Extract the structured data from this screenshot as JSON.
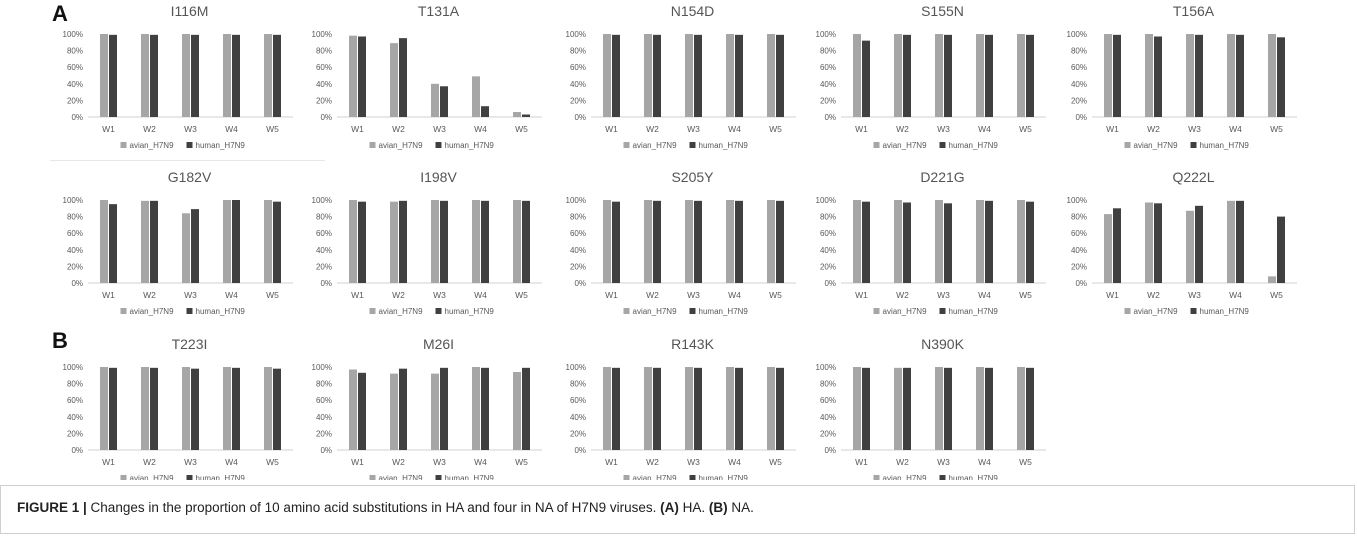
{
  "panel_letters": {
    "a": "A",
    "b": "B"
  },
  "caption": {
    "label": "FIGURE 1 |",
    "text": " Changes in the proportion of 10 amino acid substitutions in HA and four in NA of H7N9 viruses. ",
    "a_label": "(A)",
    "a_text": " HA. ",
    "b_label": "(B)",
    "b_text": " NA."
  },
  "colors": {
    "avian": "#a6a6a6",
    "human": "#404040",
    "axis": "#d0d0d0",
    "text": "#595959"
  },
  "legend": [
    "avian_H7N9",
    "human_H7N9"
  ],
  "chart_data": [
    {
      "type": "bar",
      "group": "A",
      "title": "I116M",
      "categories": [
        "W1",
        "W2",
        "W3",
        "W4",
        "W5"
      ],
      "ylim": [
        0,
        100
      ],
      "yticks": [
        "0%",
        "20%",
        "40%",
        "60%",
        "80%",
        "100%"
      ],
      "series": [
        {
          "name": "avian_H7N9",
          "values": [
            100,
            100,
            100,
            100,
            100
          ]
        },
        {
          "name": "human_H7N9",
          "values": [
            99,
            99,
            99,
            99,
            99
          ]
        }
      ]
    },
    {
      "type": "bar",
      "group": "A",
      "title": "T131A",
      "categories": [
        "W1",
        "W2",
        "W3",
        "W4",
        "W5"
      ],
      "ylim": [
        0,
        100
      ],
      "yticks": [
        "0%",
        "20%",
        "40%",
        "60%",
        "80%",
        "100%"
      ],
      "series": [
        {
          "name": "avian_H7N9",
          "values": [
            98,
            89,
            40,
            49,
            6
          ]
        },
        {
          "name": "human_H7N9",
          "values": [
            97,
            95,
            37,
            13,
            3
          ]
        }
      ]
    },
    {
      "type": "bar",
      "group": "A",
      "title": "N154D",
      "categories": [
        "W1",
        "W2",
        "W3",
        "W4",
        "W5"
      ],
      "ylim": [
        0,
        100
      ],
      "yticks": [
        "0%",
        "20%",
        "40%",
        "60%",
        "80%",
        "100%"
      ],
      "series": [
        {
          "name": "avian_H7N9",
          "values": [
            100,
            100,
            100,
            100,
            100
          ]
        },
        {
          "name": "human_H7N9",
          "values": [
            99,
            99,
            99,
            99,
            99
          ]
        }
      ]
    },
    {
      "type": "bar",
      "group": "A",
      "title": "S155N",
      "categories": [
        "W1",
        "W2",
        "W3",
        "W4",
        "W5"
      ],
      "ylim": [
        0,
        100
      ],
      "yticks": [
        "0%",
        "20%",
        "40%",
        "60%",
        "80%",
        "100%"
      ],
      "series": [
        {
          "name": "avian_H7N9",
          "values": [
            100,
            100,
            100,
            100,
            100
          ]
        },
        {
          "name": "human_H7N9",
          "values": [
            92,
            99,
            99,
            99,
            99
          ]
        }
      ]
    },
    {
      "type": "bar",
      "group": "A",
      "title": "T156A",
      "categories": [
        "W1",
        "W2",
        "W3",
        "W4",
        "W5"
      ],
      "ylim": [
        0,
        100
      ],
      "yticks": [
        "0%",
        "20%",
        "40%",
        "60%",
        "80%",
        "100%"
      ],
      "series": [
        {
          "name": "avian_H7N9",
          "values": [
            100,
            100,
            100,
            100,
            100
          ]
        },
        {
          "name": "human_H7N9",
          "values": [
            99,
            97,
            99,
            99,
            96
          ]
        }
      ]
    },
    {
      "type": "bar",
      "group": "A",
      "title": "G182V",
      "categories": [
        "W1",
        "W2",
        "W3",
        "W4",
        "W5"
      ],
      "ylim": [
        0,
        100
      ],
      "yticks": [
        "0%",
        "20%",
        "40%",
        "60%",
        "80%",
        "100%"
      ],
      "series": [
        {
          "name": "avian_H7N9",
          "values": [
            100,
            99,
            84,
            100,
            100
          ]
        },
        {
          "name": "human_H7N9",
          "values": [
            95,
            99,
            89,
            100,
            98
          ]
        }
      ]
    },
    {
      "type": "bar",
      "group": "A",
      "title": "I198V",
      "categories": [
        "W1",
        "W2",
        "W3",
        "W4",
        "W5"
      ],
      "ylim": [
        0,
        100
      ],
      "yticks": [
        "0%",
        "20%",
        "40%",
        "60%",
        "80%",
        "100%"
      ],
      "series": [
        {
          "name": "avian_H7N9",
          "values": [
            100,
            98,
            100,
            100,
            100
          ]
        },
        {
          "name": "human_H7N9",
          "values": [
            98,
            99,
            99,
            99,
            99
          ]
        }
      ]
    },
    {
      "type": "bar",
      "group": "A",
      "title": "S205Y",
      "categories": [
        "W1",
        "W2",
        "W3",
        "W4",
        "W5"
      ],
      "ylim": [
        0,
        100
      ],
      "yticks": [
        "0%",
        "20%",
        "40%",
        "60%",
        "80%",
        "100%"
      ],
      "series": [
        {
          "name": "avian_H7N9",
          "values": [
            100,
            100,
            100,
            100,
            100
          ]
        },
        {
          "name": "human_H7N9",
          "values": [
            98,
            99,
            99,
            99,
            99
          ]
        }
      ]
    },
    {
      "type": "bar",
      "group": "A",
      "title": "D221G",
      "categories": [
        "W1",
        "W2",
        "W3",
        "W4",
        "W5"
      ],
      "ylim": [
        0,
        100
      ],
      "yticks": [
        "0%",
        "20%",
        "40%",
        "60%",
        "80%",
        "100%"
      ],
      "series": [
        {
          "name": "avian_H7N9",
          "values": [
            100,
            100,
            100,
            100,
            100
          ]
        },
        {
          "name": "human_H7N9",
          "values": [
            98,
            97,
            96,
            99,
            98
          ]
        }
      ]
    },
    {
      "type": "bar",
      "group": "A",
      "title": "Q222L",
      "categories": [
        "W1",
        "W2",
        "W3",
        "W4",
        "W5"
      ],
      "ylim": [
        0,
        100
      ],
      "yticks": [
        "0%",
        "20%",
        "40%",
        "60%",
        "80%",
        "100%"
      ],
      "series": [
        {
          "name": "avian_H7N9",
          "values": [
            83,
            97,
            87,
            99,
            8
          ]
        },
        {
          "name": "human_H7N9",
          "values": [
            90,
            96,
            93,
            99,
            80
          ]
        }
      ]
    },
    {
      "type": "bar",
      "group": "B",
      "title": "T223I",
      "categories": [
        "W1",
        "W2",
        "W3",
        "W4",
        "W5"
      ],
      "ylim": [
        0,
        100
      ],
      "yticks": [
        "0%",
        "20%",
        "40%",
        "60%",
        "80%",
        "100%"
      ],
      "series": [
        {
          "name": "avian_H7N9",
          "values": [
            100,
            100,
            100,
            100,
            100
          ]
        },
        {
          "name": "human_H7N9",
          "values": [
            99,
            99,
            98,
            99,
            98
          ]
        }
      ]
    },
    {
      "type": "bar",
      "group": "B",
      "title": "M26I",
      "categories": [
        "W1",
        "W2",
        "W3",
        "W4",
        "W5"
      ],
      "ylim": [
        0,
        100
      ],
      "yticks": [
        "0%",
        "20%",
        "40%",
        "60%",
        "80%",
        "100%"
      ],
      "series": [
        {
          "name": "avian_H7N9",
          "values": [
            97,
            92,
            92,
            100,
            94
          ]
        },
        {
          "name": "human_H7N9",
          "values": [
            93,
            98,
            99,
            99,
            99
          ]
        }
      ]
    },
    {
      "type": "bar",
      "group": "B",
      "title": "R143K",
      "categories": [
        "W1",
        "W2",
        "W3",
        "W4",
        "W5"
      ],
      "ylim": [
        0,
        100
      ],
      "yticks": [
        "0%",
        "20%",
        "40%",
        "60%",
        "80%",
        "100%"
      ],
      "series": [
        {
          "name": "avian_H7N9",
          "values": [
            100,
            100,
            100,
            100,
            100
          ]
        },
        {
          "name": "human_H7N9",
          "values": [
            99,
            99,
            99,
            99,
            99
          ]
        }
      ]
    },
    {
      "type": "bar",
      "group": "B",
      "title": "N390K",
      "categories": [
        "W1",
        "W2",
        "W3",
        "W4",
        "W5"
      ],
      "ylim": [
        0,
        100
      ],
      "yticks": [
        "0%",
        "20%",
        "40%",
        "60%",
        "80%",
        "100%"
      ],
      "series": [
        {
          "name": "avian_H7N9",
          "values": [
            100,
            99,
            100,
            100,
            100
          ]
        },
        {
          "name": "human_H7N9",
          "values": [
            99,
            99,
            99,
            99,
            99
          ]
        }
      ]
    }
  ]
}
